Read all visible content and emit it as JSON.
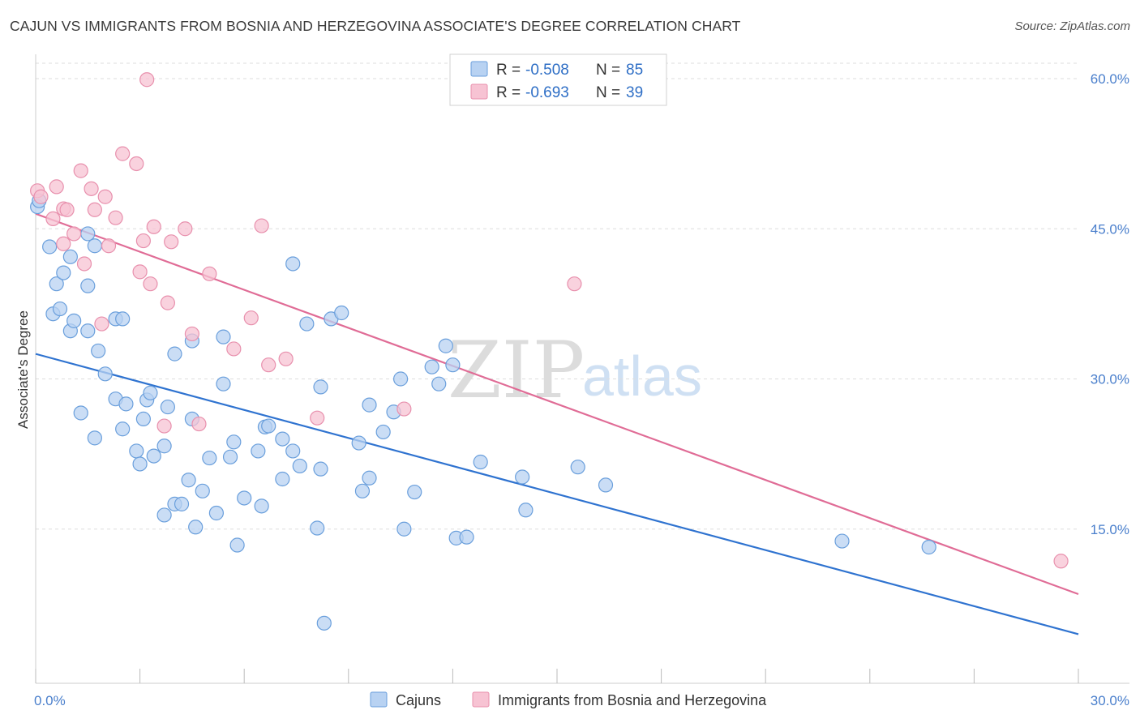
{
  "header": {
    "title": "CAJUN VS IMMIGRANTS FROM BOSNIA AND HERZEGOVINA ASSOCIATE'S DEGREE CORRELATION CHART",
    "source": "Source: ZipAtlas.com"
  },
  "watermark": {
    "zip": "ZIP",
    "atlas": "atlas"
  },
  "colors": {
    "blue_fill": "#b8d2f2",
    "blue_stroke": "#6a9fdc",
    "blue_line": "#2f73d0",
    "pink_fill": "#f7c3d3",
    "pink_stroke": "#e890ad",
    "pink_line": "#e06c96",
    "grid": "#dddddd",
    "tick_label": "#4a7fcc"
  },
  "legend": {
    "r_label": "R =",
    "n_label": "N =",
    "rows": [
      {
        "r": "-0.508",
        "n": "85"
      },
      {
        "r": "-0.693",
        "n": "39"
      }
    ]
  },
  "chart_data": {
    "type": "scatter",
    "title": "CAJUN VS IMMIGRANTS FROM BOSNIA AND HERZEGOVINA ASSOCIATE'S DEGREE CORRELATION CHART",
    "xlabel": "",
    "ylabel": "Associate's Degree",
    "xlim": [
      0,
      30
    ],
    "ylim": [
      0,
      60
    ],
    "x_tick_labels": [
      "0.0%",
      "30.0%"
    ],
    "y_ticks": [
      15,
      30,
      45,
      60
    ],
    "y_tick_labels": [
      "15.0%",
      "30.0%",
      "45.0%",
      "60.0%"
    ],
    "legend_position": "top-center",
    "series": [
      {
        "name": "Cajuns",
        "r": -0.508,
        "n": 85,
        "trend": [
          [
            0,
            32.5
          ],
          [
            30,
            4.5
          ]
        ],
        "points": [
          [
            0.05,
            47.2
          ],
          [
            0.1,
            47.8
          ],
          [
            0.4,
            43.2
          ],
          [
            0.6,
            39.5
          ],
          [
            0.8,
            40.6
          ],
          [
            1.0,
            42.2
          ],
          [
            1.5,
            44.5
          ],
          [
            0.5,
            36.5
          ],
          [
            0.7,
            37.0
          ],
          [
            1.0,
            34.8
          ],
          [
            1.1,
            35.8
          ],
          [
            1.5,
            39.3
          ],
          [
            1.7,
            43.3
          ],
          [
            2.3,
            36.0
          ],
          [
            2.5,
            36.0
          ],
          [
            1.5,
            34.8
          ],
          [
            1.8,
            32.8
          ],
          [
            2.0,
            30.5
          ],
          [
            2.3,
            28.0
          ],
          [
            2.6,
            27.5
          ],
          [
            3.2,
            27.9
          ],
          [
            3.3,
            28.6
          ],
          [
            3.8,
            27.2
          ],
          [
            1.3,
            26.6
          ],
          [
            1.7,
            24.1
          ],
          [
            2.5,
            25.0
          ],
          [
            2.9,
            22.8
          ],
          [
            3.0,
            21.5
          ],
          [
            3.1,
            26.0
          ],
          [
            3.4,
            22.3
          ],
          [
            3.7,
            23.3
          ],
          [
            4.0,
            32.5
          ],
          [
            4.5,
            33.8
          ],
          [
            5.4,
            34.2
          ],
          [
            5.4,
            29.5
          ],
          [
            4.5,
            26.0
          ],
          [
            5.7,
            23.7
          ],
          [
            5.6,
            22.2
          ],
          [
            5.0,
            22.1
          ],
          [
            4.4,
            19.9
          ],
          [
            4.8,
            18.8
          ],
          [
            4.0,
            17.5
          ],
          [
            4.2,
            17.5
          ],
          [
            3.7,
            16.4
          ],
          [
            5.2,
            16.6
          ],
          [
            4.6,
            15.2
          ],
          [
            5.8,
            13.4
          ],
          [
            6.6,
            25.2
          ],
          [
            6.4,
            22.8
          ],
          [
            7.1,
            24.0
          ],
          [
            6.7,
            25.3
          ],
          [
            7.4,
            22.8
          ],
          [
            7.1,
            20.0
          ],
          [
            7.6,
            21.3
          ],
          [
            8.2,
            21.0
          ],
          [
            8.2,
            29.2
          ],
          [
            8.1,
            15.1
          ],
          [
            7.4,
            41.5
          ],
          [
            7.8,
            35.5
          ],
          [
            8.5,
            36.0
          ],
          [
            8.8,
            36.6
          ],
          [
            9.6,
            27.4
          ],
          [
            9.3,
            23.6
          ],
          [
            9.6,
            20.1
          ],
          [
            9.4,
            18.8
          ],
          [
            10.0,
            24.7
          ],
          [
            10.3,
            26.7
          ],
          [
            10.5,
            30.0
          ],
          [
            10.6,
            15.0
          ],
          [
            10.9,
            18.7
          ],
          [
            11.4,
            31.2
          ],
          [
            11.6,
            29.5
          ],
          [
            11.8,
            33.3
          ],
          [
            12.0,
            31.4
          ],
          [
            12.1,
            14.1
          ],
          [
            12.4,
            14.2
          ],
          [
            12.8,
            21.7
          ],
          [
            14.0,
            20.2
          ],
          [
            14.1,
            16.9
          ],
          [
            15.6,
            21.2
          ],
          [
            16.4,
            19.4
          ],
          [
            6.0,
            18.1
          ],
          [
            6.5,
            17.3
          ],
          [
            8.3,
            5.6
          ],
          [
            23.2,
            13.8
          ],
          [
            25.7,
            13.2
          ]
        ]
      },
      {
        "name": "Immigrants from Bosnia and Herzegovina",
        "r": -0.693,
        "n": 39,
        "trend": [
          [
            0,
            46.5
          ],
          [
            30,
            8.5
          ]
        ],
        "points": [
          [
            0.05,
            48.8
          ],
          [
            0.15,
            48.2
          ],
          [
            0.6,
            49.2
          ],
          [
            0.8,
            47.0
          ],
          [
            0.9,
            46.9
          ],
          [
            0.5,
            46.0
          ],
          [
            0.8,
            43.5
          ],
          [
            1.1,
            44.5
          ],
          [
            1.4,
            41.5
          ],
          [
            1.3,
            50.8
          ],
          [
            1.6,
            49.0
          ],
          [
            1.7,
            46.9
          ],
          [
            2.0,
            48.2
          ],
          [
            2.3,
            46.1
          ],
          [
            2.1,
            43.3
          ],
          [
            2.5,
            52.5
          ],
          [
            2.9,
            51.5
          ],
          [
            3.1,
            43.8
          ],
          [
            3.0,
            40.7
          ],
          [
            3.3,
            39.5
          ],
          [
            3.4,
            45.2
          ],
          [
            3.8,
            37.6
          ],
          [
            3.9,
            43.7
          ],
          [
            4.3,
            45.0
          ],
          [
            1.9,
            35.5
          ],
          [
            4.5,
            34.5
          ],
          [
            5.0,
            40.5
          ],
          [
            5.7,
            33.0
          ],
          [
            6.2,
            36.1
          ],
          [
            6.5,
            45.3
          ],
          [
            6.7,
            31.4
          ],
          [
            7.2,
            32.0
          ],
          [
            8.1,
            26.1
          ],
          [
            10.6,
            27.0
          ],
          [
            15.5,
            39.5
          ],
          [
            3.7,
            25.3
          ],
          [
            4.7,
            25.5
          ],
          [
            3.2,
            59.9
          ],
          [
            29.5,
            11.8
          ]
        ]
      }
    ]
  }
}
